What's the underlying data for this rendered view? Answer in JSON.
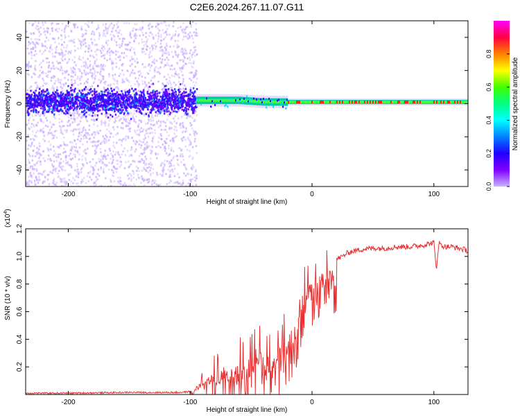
{
  "title": "C2E6.2024.267.11.07.G11",
  "colors": {
    "snr_line": "#e83030",
    "axis": "#000000",
    "colorbar": [
      "#ff00ff",
      "#ff0040",
      "#ff8000",
      "#ffff00",
      "#40ff00",
      "#00ff80",
      "#00ffff",
      "#0080ff",
      "#2000ff",
      "#8000ff",
      "#c8b4ff"
    ]
  },
  "chart_data": [
    {
      "type": "heatmap",
      "name": "spectrogram",
      "xlabel": "Height of straight line (km)",
      "ylabel": "Frequency (Hz)",
      "xlim": [
        -235,
        128
      ],
      "ylim": [
        -50,
        50
      ],
      "xticks": [
        -200,
        -100,
        0,
        100
      ],
      "yticks": [
        -40,
        -20,
        0,
        20,
        40
      ],
      "xtick_labels": [
        "-200",
        "-100",
        "0",
        "100"
      ],
      "ytick_labels": [
        "-40",
        "-20",
        "0",
        "20",
        "40"
      ],
      "ridge": [
        {
          "x": -95,
          "freq": 2
        },
        {
          "x": -60,
          "freq": 2
        },
        {
          "x": -40,
          "freq": 1
        },
        {
          "x": -20,
          "freq": 1
        },
        {
          "x": 0,
          "freq": 1
        },
        {
          "x": 50,
          "freq": 1
        },
        {
          "x": 100,
          "freq": 1
        },
        {
          "x": 128,
          "freq": 1
        }
      ],
      "colorbar": {
        "label": "Normalized spectral amplitude",
        "range": [
          0,
          1
        ],
        "ticks": [
          0.0,
          0.2,
          0.4,
          0.6,
          0.8
        ],
        "tick_labels": [
          "0.0",
          "0.2",
          "0.4",
          "0.6",
          "0.8"
        ]
      }
    },
    {
      "type": "line",
      "name": "snr",
      "xlabel": "Height of straight line (km)",
      "ylabel": "SNR (10 * v/v)",
      "exponent_label": "(x10",
      "exponent_power": "4",
      "exponent_close": ")",
      "xlim": [
        -235,
        128
      ],
      "ylim": [
        0,
        1.2
      ],
      "xticks": [
        -200,
        -100,
        0,
        100
      ],
      "yticks": [
        0.2,
        0.4,
        0.6,
        0.8,
        1.0,
        1.2
      ],
      "xtick_labels": [
        "-200",
        "-100",
        "0",
        "100"
      ],
      "ytick_labels": [
        "0.2",
        "0.4",
        "0.6",
        "0.8",
        "1.0",
        "1.2"
      ],
      "series": [
        {
          "name": "SNR",
          "x": [
            -235,
            -200,
            -150,
            -110,
            -100,
            -95,
            -90,
            -85,
            -80,
            -75,
            -70,
            -65,
            -60,
            -55,
            -50,
            -45,
            -40,
            -35,
            -30,
            -25,
            -20,
            -15,
            -10,
            -5,
            0,
            5,
            10,
            15,
            20,
            25,
            30,
            40,
            50,
            60,
            70,
            80,
            90,
            95,
            100,
            102,
            104,
            106,
            110,
            115,
            120,
            125,
            128
          ],
          "y": [
            0.01,
            0.01,
            0.015,
            0.015,
            0.02,
            0.06,
            0.1,
            0.15,
            0.16,
            0.2,
            0.18,
            0.25,
            0.22,
            0.3,
            0.28,
            0.35,
            0.3,
            0.28,
            0.35,
            0.4,
            0.45,
            0.5,
            0.7,
            0.75,
            0.85,
            0.85,
            0.9,
            0.95,
            0.98,
            1.0,
            1.03,
            1.05,
            1.06,
            1.06,
            1.07,
            1.07,
            1.08,
            1.09,
            1.1,
            0.9,
            1.1,
            1.08,
            1.07,
            1.07,
            1.06,
            1.05,
            1.04
          ]
        }
      ]
    }
  ]
}
